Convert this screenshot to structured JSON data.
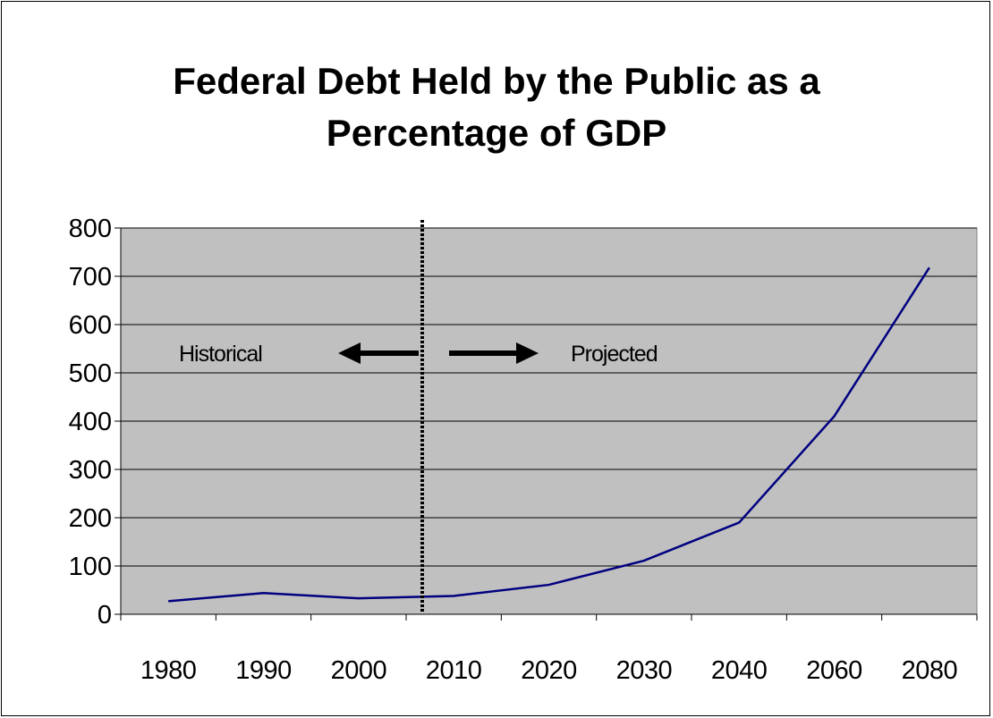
{
  "chart_data": {
    "type": "line",
    "title_lines": [
      "Federal Debt Held by the Public as a",
      "Percentage of GDP"
    ],
    "categories": [
      "1980",
      "1990",
      "2000",
      "2010",
      "2020",
      "2030",
      "2040",
      "2060",
      "2080"
    ],
    "series": [
      {
        "values": [
          27,
          44,
          33,
          38,
          61,
          111,
          190,
          410,
          718
        ],
        "color": "#000080"
      }
    ],
    "xlabel": "",
    "ylabel": "",
    "ylim": [
      0,
      800
    ],
    "yticks": [
      0,
      100,
      200,
      300,
      400,
      500,
      600,
      700,
      800
    ],
    "grid": true,
    "plot_background": "#c0c0c0",
    "annotations": {
      "historical_label": "Historical",
      "projected_label": "Projected",
      "divider_year": "2010"
    }
  }
}
